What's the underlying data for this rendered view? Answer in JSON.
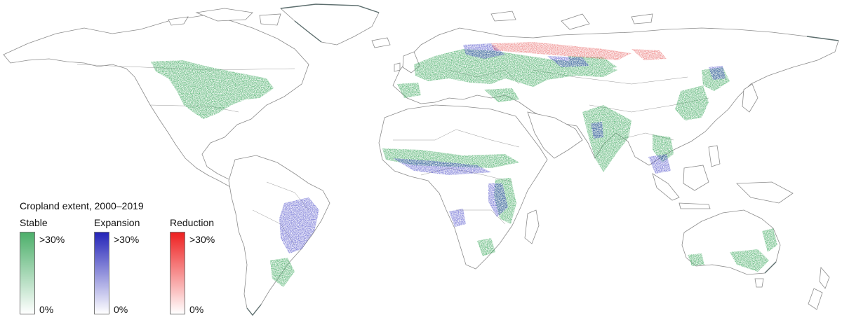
{
  "legend": {
    "title": "Cropland extent, 2000–2019",
    "categories": [
      {
        "label": "Stable",
        "high": ">30%",
        "low": "0%",
        "color": "#4caf6a"
      },
      {
        "label": "Expansion",
        "high": ">30%",
        "low": "0%",
        "color": "#2424b8"
      },
      {
        "label": "Reduction",
        "high": ">30%",
        "low": "0%",
        "color": "#ee2020"
      }
    ]
  },
  "colors": {
    "background": "#ffffff",
    "land_outline": "#8c8c8c",
    "coast_dark": "#5d6e6e",
    "stable": "#4caf6a",
    "expansion": "#3b3bc4",
    "reduction": "#e23a3a"
  },
  "icons": [
    "world-map"
  ]
}
